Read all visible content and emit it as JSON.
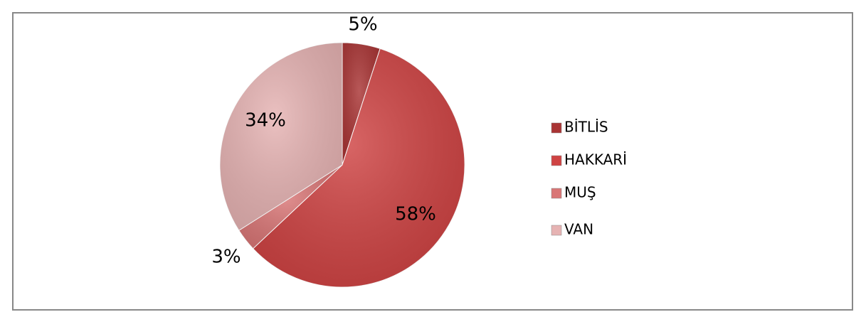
{
  "chart_data": {
    "type": "pie",
    "categories": [
      "BİTLİS",
      "HAKKARİ",
      "MUŞ",
      "VAN"
    ],
    "values": [
      5,
      58,
      3,
      34
    ],
    "value_labels": [
      "5%",
      "58%",
      "3%",
      "34%"
    ],
    "colors": [
      "#a93434",
      "#cf4343",
      "#d97676",
      "#e6b3b3"
    ],
    "legend": "right"
  }
}
